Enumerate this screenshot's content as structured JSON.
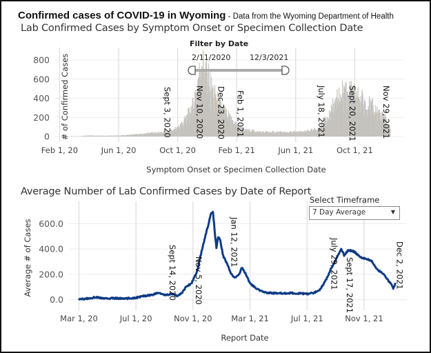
{
  "header": {
    "title": "Confirmed cases of COVID-19 in Wyoming",
    "subtitle": " - Data from the Wyoming Department of Health"
  },
  "filter": {
    "label": "Filter by Date",
    "start": "2/11/2020",
    "end": "12/3/2021"
  },
  "timeframe": {
    "label": "Select Timeframe",
    "selected": "7 Day Average"
  },
  "chart_data": [
    {
      "type": "bar",
      "title": "Lab Confirmed Cases by Symptom Onset or Specimen Collection Date",
      "xlabel": "Symptom Onset or Specimen Collection Date",
      "ylabel": "# of Confirmed Cases",
      "ylim": [
        0,
        900
      ],
      "yticks": [
        0,
        200,
        400,
        600,
        800
      ],
      "ytick_labels": [
        "0",
        "200",
        "400",
        "600",
        "800"
      ],
      "xtick_labels": [
        "Feb 1, 20",
        "Jun 1, 20",
        "Oct 1, 20",
        "Feb 1, 21",
        "Jun 1, 21",
        "Oct 1, 21"
      ],
      "xtick_months": [
        0,
        4,
        8,
        12,
        16,
        20
      ],
      "x_start_month": -0.3,
      "x_end_month": 23.3,
      "grid": true,
      "color": "#c4c4c4",
      "series_profile": [
        {
          "m": 0.3,
          "v": 0
        },
        {
          "m": 1.3,
          "v": 3
        },
        {
          "m": 2.0,
          "v": 12
        },
        {
          "m": 3.0,
          "v": 8
        },
        {
          "m": 4.0,
          "v": 10
        },
        {
          "m": 5.0,
          "v": 20
        },
        {
          "m": 6.0,
          "v": 35
        },
        {
          "m": 7.0,
          "v": 45
        },
        {
          "m": 7.5,
          "v": 60
        },
        {
          "m": 8.0,
          "v": 100
        },
        {
          "m": 8.5,
          "v": 180
        },
        {
          "m": 9.0,
          "v": 330
        },
        {
          "m": 9.3,
          "v": 550
        },
        {
          "m": 9.6,
          "v": 800
        },
        {
          "m": 9.9,
          "v": 700
        },
        {
          "m": 10.3,
          "v": 500
        },
        {
          "m": 10.7,
          "v": 380
        },
        {
          "m": 11.0,
          "v": 300
        },
        {
          "m": 11.5,
          "v": 200
        },
        {
          "m": 12.0,
          "v": 120
        },
        {
          "m": 12.5,
          "v": 70
        },
        {
          "m": 13.5,
          "v": 50
        },
        {
          "m": 15.0,
          "v": 45
        },
        {
          "m": 16.5,
          "v": 50
        },
        {
          "m": 17.5,
          "v": 80
        },
        {
          "m": 18.0,
          "v": 180
        },
        {
          "m": 18.7,
          "v": 380
        },
        {
          "m": 19.3,
          "v": 520
        },
        {
          "m": 19.7,
          "v": 470
        },
        {
          "m": 20.5,
          "v": 400
        },
        {
          "m": 21.3,
          "v": 300
        },
        {
          "m": 22.0,
          "v": 200
        },
        {
          "m": 22.4,
          "v": 80
        }
      ],
      "annotations": [
        {
          "label": "Sept 3, 2020",
          "month": 7.1
        },
        {
          "label": "Nov 10, 2020",
          "month": 9.3
        },
        {
          "label": "Dec 23, 2020",
          "month": 10.75
        },
        {
          "label": "Feb 1, 2021",
          "month": 12.05
        },
        {
          "label": "July 18, 2021",
          "month": 17.55
        },
        {
          "label": "Sept 20, 2021",
          "month": 19.65
        },
        {
          "label": "Nov 29, 2021",
          "month": 21.95
        }
      ]
    },
    {
      "type": "line",
      "title": "Average Number of Lab Confirmed Cases by Date of Report",
      "xlabel": "Report Date",
      "ylabel": "Average # of Cases",
      "ylim": [
        -40,
        760
      ],
      "yticks": [
        0,
        200,
        400,
        600
      ],
      "ytick_labels": [
        "0.0",
        "200.0",
        "400.0",
        "600.0"
      ],
      "xtick_labels": [
        "Mar 1, 20",
        "Jul 1, 20",
        "Nov 1, 20",
        "Mar 1, 21",
        "Jul 1, 21",
        "Nov 1, 21"
      ],
      "xtick_months": [
        0,
        4,
        8,
        12,
        16,
        20
      ],
      "x_start_month": -0.7,
      "x_end_month": 23.0,
      "grid": true,
      "color": "#0d3b85",
      "points": [
        {
          "m": 0.0,
          "v": 2
        },
        {
          "m": 0.7,
          "v": 10
        },
        {
          "m": 1.2,
          "v": 20
        },
        {
          "m": 1.8,
          "v": 8
        },
        {
          "m": 2.5,
          "v": 12
        },
        {
          "m": 3.2,
          "v": 8
        },
        {
          "m": 4.0,
          "v": 15
        },
        {
          "m": 4.6,
          "v": 30
        },
        {
          "m": 5.2,
          "v": 40
        },
        {
          "m": 5.6,
          "v": 55
        },
        {
          "m": 6.0,
          "v": 35
        },
        {
          "m": 6.5,
          "v": 45
        },
        {
          "m": 6.9,
          "v": 30
        },
        {
          "m": 7.2,
          "v": 50
        },
        {
          "m": 7.5,
          "v": 100
        },
        {
          "m": 7.9,
          "v": 130
        },
        {
          "m": 8.3,
          "v": 230
        },
        {
          "m": 8.6,
          "v": 380
        },
        {
          "m": 8.9,
          "v": 520
        },
        {
          "m": 9.1,
          "v": 600
        },
        {
          "m": 9.25,
          "v": 680
        },
        {
          "m": 9.4,
          "v": 695
        },
        {
          "m": 9.55,
          "v": 500
        },
        {
          "m": 9.65,
          "v": 400
        },
        {
          "m": 9.75,
          "v": 490
        },
        {
          "m": 9.9,
          "v": 480
        },
        {
          "m": 10.1,
          "v": 350
        },
        {
          "m": 10.4,
          "v": 280
        },
        {
          "m": 10.7,
          "v": 200
        },
        {
          "m": 10.9,
          "v": 170
        },
        {
          "m": 11.2,
          "v": 195
        },
        {
          "m": 11.45,
          "v": 255
        },
        {
          "m": 11.7,
          "v": 200
        },
        {
          "m": 12.0,
          "v": 130
        },
        {
          "m": 12.4,
          "v": 90
        },
        {
          "m": 12.8,
          "v": 65
        },
        {
          "m": 13.2,
          "v": 55
        },
        {
          "m": 14.0,
          "v": 50
        },
        {
          "m": 15.0,
          "v": 52
        },
        {
          "m": 16.0,
          "v": 45
        },
        {
          "m": 16.5,
          "v": 55
        },
        {
          "m": 16.9,
          "v": 80
        },
        {
          "m": 17.3,
          "v": 150
        },
        {
          "m": 17.7,
          "v": 250
        },
        {
          "m": 18.1,
          "v": 330
        },
        {
          "m": 18.4,
          "v": 400
        },
        {
          "m": 18.6,
          "v": 350
        },
        {
          "m": 18.9,
          "v": 390
        },
        {
          "m": 19.3,
          "v": 380
        },
        {
          "m": 19.7,
          "v": 340
        },
        {
          "m": 20.1,
          "v": 320
        },
        {
          "m": 20.5,
          "v": 310
        },
        {
          "m": 20.9,
          "v": 240
        },
        {
          "m": 21.3,
          "v": 210
        },
        {
          "m": 21.7,
          "v": 150
        },
        {
          "m": 21.9,
          "v": 130
        },
        {
          "m": 22.05,
          "v": 85
        },
        {
          "m": 22.2,
          "v": 130
        }
      ],
      "annotations": [
        {
          "label": "Sept 14, 2020",
          "month": 6.35
        },
        {
          "label": "Nov 5, 2020",
          "month": 8.2
        },
        {
          "label": "Jan 12, 2021",
          "month": 10.7
        },
        {
          "label": "July 29, 2021",
          "month": 17.7
        },
        {
          "label": "Sept 17, 2021",
          "month": 18.8
        },
        {
          "label": "Dec 2, 2021",
          "month": 22.3
        }
      ]
    }
  ]
}
